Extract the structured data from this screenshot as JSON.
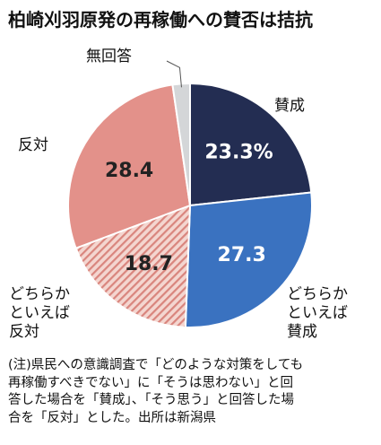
{
  "title": "柏崎刈羽原発の再稼働への賛否は拮抗",
  "chart_data": {
    "type": "pie",
    "start_angle_deg": 0,
    "direction": "clockwise",
    "slices": [
      {
        "label_lines": [
          "賛成"
        ],
        "value": 23.3,
        "value_label": "23.3%",
        "color": "#232d52",
        "text_color": "#ffffff",
        "pattern": "none"
      },
      {
        "label_lines": [
          "どちらか",
          "といえば",
          "賛成"
        ],
        "value": 27.3,
        "value_label": "27.3",
        "color": "#3a72c0",
        "text_color": "#ffffff",
        "pattern": "none"
      },
      {
        "label_lines": [
          "どちらか",
          "といえば",
          "反対"
        ],
        "value": 18.7,
        "value_label": "18.7",
        "color": "#f4d6d0",
        "text_color": "#222222",
        "pattern": "hatch",
        "pattern_color": "#d9857d"
      },
      {
        "label_lines": [
          "反対"
        ],
        "value": 28.4,
        "value_label": "28.4",
        "color": "#e3918a",
        "text_color": "#222222",
        "pattern": "none"
      },
      {
        "label_lines": [
          "無回答"
        ],
        "value": 2.3,
        "value_label": "",
        "color": "#d4d6d8",
        "text_color": "#222222",
        "pattern": "none"
      }
    ]
  },
  "note_lines": [
    "(注)県民への意識調査で「どのような対策をしても",
    "再稼働すべきでない」に「そうは思わない」と回",
    "答した場合を「賛成」、「そう思う」と回答した場",
    "合を「反対」とした。出所は新潟県"
  ]
}
